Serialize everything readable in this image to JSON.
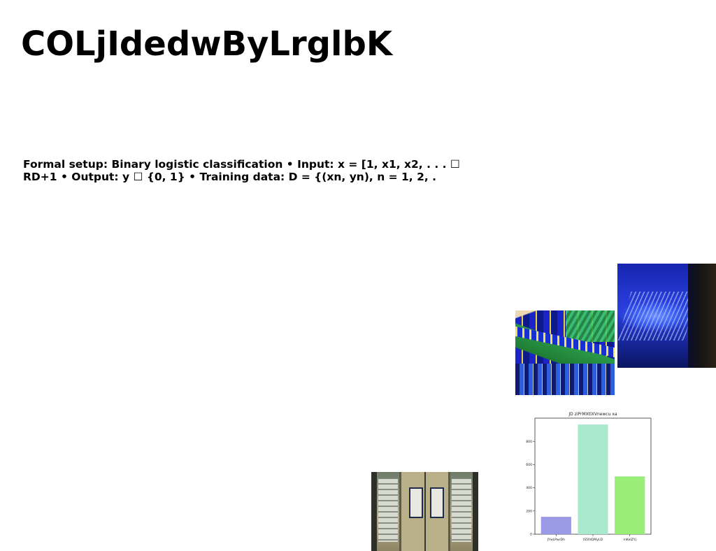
{
  "document": {
    "title": "COLjIdedwByLrglbK",
    "body": "Formal setup: Binary logistic classification • Input: x = [1, x1, x2, . . . ☐ RD+1 • Output: y ☐ {0, 1} • Training data: D = {(xn, yn), n = 1, 2, ."
  },
  "chart_data": {
    "type": "bar",
    "title": "JD ziPrMXtlXVnewcu xa",
    "categories": [
      "JYwLPwrDh",
      "lS5fdQMyLD",
      "mKeIZYj"
    ],
    "values": [
      150,
      945,
      498
    ],
    "colors": [
      "#9999e6",
      "#aaeacc",
      "#99ee77"
    ],
    "ylim": [
      0,
      1000
    ],
    "yticks": [
      0,
      200,
      400,
      600,
      800
    ],
    "xlabel": "",
    "ylabel": "",
    "grid": false,
    "legend": "none"
  }
}
